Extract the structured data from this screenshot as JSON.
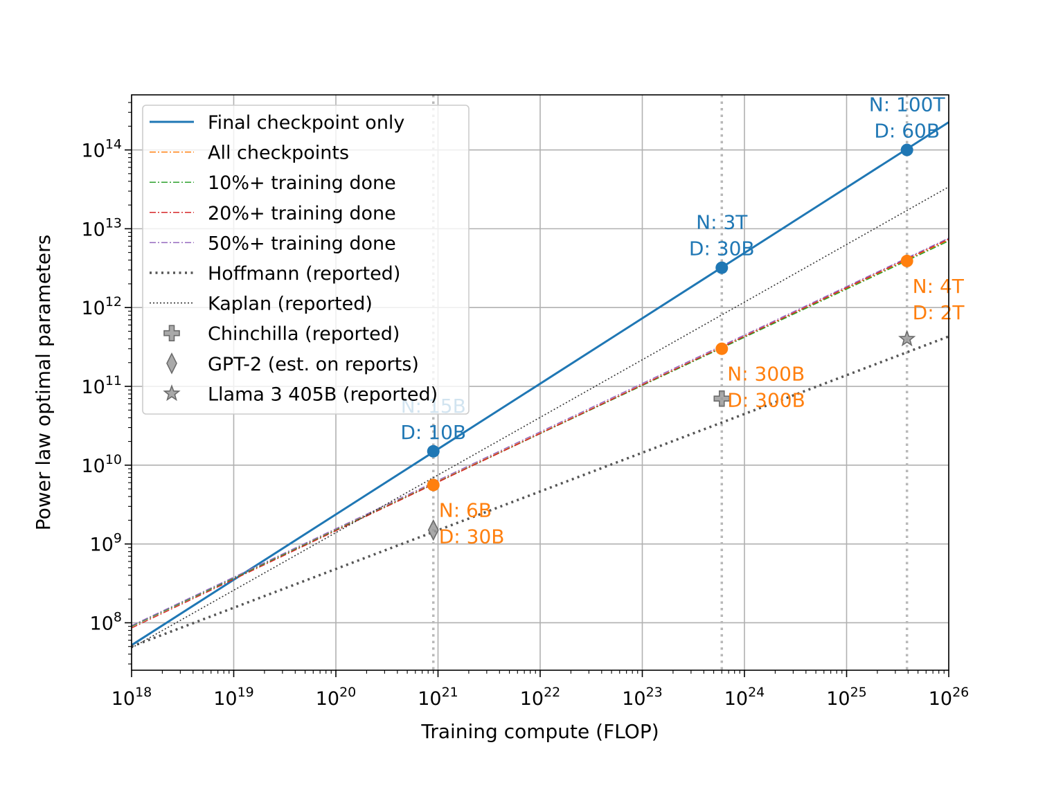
{
  "chart_data": {
    "type": "line",
    "title": "",
    "xlabel": "Training compute (FLOP)",
    "ylabel": "Power law optimal parameters",
    "xscale": "log",
    "yscale": "log",
    "xlim": [
      1e+18,
      1e+26
    ],
    "ylim": [
      25000000.0,
      500000000000000.0
    ],
    "grid": true,
    "x_ticks": [
      {
        "base": "10",
        "exp": "18",
        "value": 1e+18
      },
      {
        "base": "10",
        "exp": "19",
        "value": 1e+19
      },
      {
        "base": "10",
        "exp": "20",
        "value": 1e+20
      },
      {
        "base": "10",
        "exp": "21",
        "value": 1e+21
      },
      {
        "base": "10",
        "exp": "22",
        "value": 1e+22
      },
      {
        "base": "10",
        "exp": "23",
        "value": 1e+23
      },
      {
        "base": "10",
        "exp": "24",
        "value": 1e+24
      },
      {
        "base": "10",
        "exp": "25",
        "value": 1e+25
      },
      {
        "base": "10",
        "exp": "26",
        "value": 1e+26
      }
    ],
    "y_ticks": [
      {
        "base": "10",
        "exp": "8",
        "value": 100000000.0
      },
      {
        "base": "10",
        "exp": "9",
        "value": 1000000000.0
      },
      {
        "base": "10",
        "exp": "10",
        "value": 10000000000.0
      },
      {
        "base": "10",
        "exp": "11",
        "value": 100000000000.0
      },
      {
        "base": "10",
        "exp": "12",
        "value": 1000000000000.0
      },
      {
        "base": "10",
        "exp": "13",
        "value": 10000000000000.0
      },
      {
        "base": "10",
        "exp": "14",
        "value": 100000000000000.0
      }
    ],
    "vertical_reference_lines": [
      9e+20,
      6e+23,
      3.9e+25
    ],
    "series": [
      {
        "name": "Final checkpoint only",
        "color": "#1f77b4",
        "style": "solid",
        "x": [
          1e+18,
          1e+26
        ],
        "y": [
          52000000.0,
          225000000000000.0
        ]
      },
      {
        "name": "All checkpoints",
        "color": "#ff7f0e",
        "style": "dashdot",
        "x": [
          1e+18,
          1e+26
        ],
        "y": [
          90000000.0,
          7200000000000.0
        ]
      },
      {
        "name": "10%+ training done",
        "color": "#2ca02c",
        "style": "dashdot",
        "x": [
          1e+18,
          1e+26
        ],
        "y": [
          90000000.0,
          7000000000000.0
        ]
      },
      {
        "name": "20%+ training done",
        "color": "#d62728",
        "style": "dashdot",
        "x": [
          1e+18,
          1e+26
        ],
        "y": [
          86000000.0,
          7400000000000.0
        ]
      },
      {
        "name": "50%+ training done",
        "color": "#9467bd",
        "style": "dashdot",
        "x": [
          1e+18,
          1e+26
        ],
        "y": [
          92000000.0,
          7600000000000.0
        ]
      },
      {
        "name": "Hoffmann (reported)",
        "color": "#555555",
        "style": "dotted-thick",
        "x": [
          1e+18,
          1e+26
        ],
        "y": [
          50000000.0,
          430000000000.0
        ]
      },
      {
        "name": "Kaplan (reported)",
        "color": "#333333",
        "style": "dotted-thin",
        "x": [
          1e+18,
          1e+26
        ],
        "y": [
          48000000.0,
          34000000000000.0
        ]
      }
    ],
    "scatter": [
      {
        "name": "Chinchilla (reported)",
        "marker": "plus",
        "x": 6e+23,
        "y": 70000000000.0
      },
      {
        "name": "GPT-2 (est. on reports)",
        "marker": "diamond",
        "x": 9e+20,
        "y": 1500000000.0
      },
      {
        "name": "Llama 3 405B (reported)",
        "marker": "star",
        "x": 3.9e+25,
        "y": 400000000000.0
      }
    ],
    "highlight_points": [
      {
        "series": "Final checkpoint only",
        "color": "#1f77b4",
        "x": 9e+20,
        "y": 15000000000.0,
        "label_lines": [
          "N: 15B",
          "D: 10B"
        ],
        "label_position": "above"
      },
      {
        "series": "Final checkpoint only",
        "color": "#1f77b4",
        "x": 6e+23,
        "y": 3200000000000.0,
        "label_lines": [
          "N: 3T",
          "D: 30B"
        ],
        "label_position": "above"
      },
      {
        "series": "Final checkpoint only",
        "color": "#1f77b4",
        "x": 3.9e+25,
        "y": 100000000000000.0,
        "label_lines": [
          "N: 100T",
          "D: 60B"
        ],
        "label_position": "above"
      },
      {
        "series": "All checkpoints",
        "color": "#ff7f0e",
        "x": 9e+20,
        "y": 5600000000.0,
        "label_lines": [
          "N: 6B",
          "D: 30B"
        ],
        "label_position": "below-right"
      },
      {
        "series": "All checkpoints",
        "color": "#ff7f0e",
        "x": 6e+23,
        "y": 300000000000.0,
        "label_lines": [
          "N: 300B",
          "D: 300B"
        ],
        "label_position": "below-right"
      },
      {
        "series": "All checkpoints",
        "color": "#ff7f0e",
        "x": 3.9e+25,
        "y": 3900000000000.0,
        "label_lines": [
          "N: 4T",
          "D: 2T"
        ],
        "label_position": "below-right"
      }
    ],
    "legend": {
      "position": "top-left",
      "entries": [
        {
          "label": "Final checkpoint only",
          "kind": "line",
          "color": "#1f77b4",
          "style": "solid"
        },
        {
          "label": "All checkpoints",
          "kind": "line",
          "color": "#ff7f0e",
          "style": "dashdot"
        },
        {
          "label": "10%+ training done",
          "kind": "line",
          "color": "#2ca02c",
          "style": "dashdot"
        },
        {
          "label": "20%+ training done",
          "kind": "line",
          "color": "#d62728",
          "style": "dashdot"
        },
        {
          "label": "50%+ training done",
          "kind": "line",
          "color": "#9467bd",
          "style": "dashdot"
        },
        {
          "label": "Hoffmann (reported)",
          "kind": "line",
          "color": "#555555",
          "style": "dotted-thick"
        },
        {
          "label": "Kaplan (reported)",
          "kind": "line",
          "color": "#333333",
          "style": "dotted-thin"
        },
        {
          "label": "Chinchilla (reported)",
          "kind": "marker",
          "marker": "plus"
        },
        {
          "label": "GPT-2 (est. on reports)",
          "kind": "marker",
          "marker": "diamond"
        },
        {
          "label": "Llama 3 405B (reported)",
          "kind": "marker",
          "marker": "star"
        }
      ]
    }
  }
}
